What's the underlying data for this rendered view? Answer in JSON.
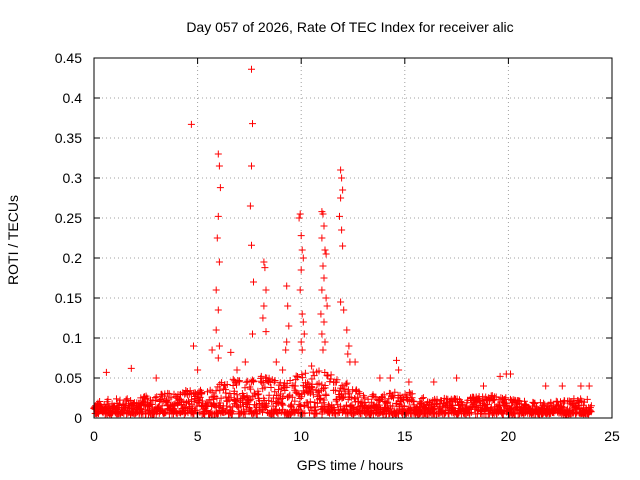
{
  "chart_data": {
    "type": "scatter",
    "title": "Day 057 of 2026, Rate Of TEC Index for receiver alic",
    "xlabel": "GPS time / hours",
    "ylabel": "ROTI / TECUs",
    "xlim": [
      0,
      25
    ],
    "ylim": [
      0,
      0.45
    ],
    "xticks": [
      0,
      5,
      10,
      15,
      20,
      25
    ],
    "xtick_labels": [
      "0",
      "5",
      "10",
      "15",
      "20",
      "25"
    ],
    "yticks": [
      0,
      0.05,
      0.1,
      0.15,
      0.2,
      0.25,
      0.3,
      0.35,
      0.4,
      0.45
    ],
    "ytick_labels": [
      "0",
      "0.05",
      "0.1",
      "0.15",
      "0.2",
      "0.25",
      "0.3",
      "0.35",
      "0.4",
      "0.45"
    ],
    "grid": true,
    "marker": "plus",
    "color": "#ff0000",
    "series": [
      {
        "name": "ROTI",
        "x": [
          4.7,
          5.9,
          6.0,
          6.05,
          6.1,
          6.0,
          5.95,
          6.05,
          6.0,
          5.9,
          6.05,
          6.0,
          7.6,
          7.65,
          7.6,
          7.55,
          7.6,
          7.7,
          7.65,
          8.2,
          8.25,
          8.3,
          8.2,
          8.15,
          8.3,
          9.3,
          9.35,
          9.4,
          9.3,
          9.25,
          9.9,
          9.95,
          10.0,
          10.05,
          10.1,
          10.0,
          9.95,
          10.05,
          10.1,
          10.15,
          10.0,
          10.05,
          11.0,
          11.05,
          11.1,
          11.0,
          11.15,
          11.2,
          11.05,
          11.1,
          11.0,
          11.2,
          11.25,
          10.95,
          11.1,
          11.0,
          11.15,
          11.05,
          11.9,
          11.95,
          12.0,
          11.9,
          11.85,
          11.95,
          12.0,
          11.9,
          12.05,
          12.2,
          12.3,
          12.25,
          12.35,
          14.6,
          14.7,
          0.6,
          1.8,
          3.0,
          4.8,
          5.0,
          5.7,
          6.6,
          6.9,
          7.3,
          8.8,
          9.1,
          10.5,
          12.6,
          13.8,
          14.3,
          15.2,
          16.4,
          17.5,
          18.8,
          19.6,
          19.9,
          20.1,
          21.8,
          22.6,
          23.5,
          23.9
        ],
        "y": [
          0.367,
          0.16,
          0.33,
          0.315,
          0.288,
          0.252,
          0.225,
          0.195,
          0.135,
          0.11,
          0.09,
          0.075,
          0.436,
          0.368,
          0.315,
          0.265,
          0.216,
          0.17,
          0.105,
          0.195,
          0.188,
          0.16,
          0.14,
          0.125,
          0.108,
          0.165,
          0.14,
          0.115,
          0.095,
          0.085,
          0.25,
          0.255,
          0.228,
          0.21,
          0.2,
          0.185,
          0.16,
          0.13,
          0.12,
          0.105,
          0.095,
          0.085,
          0.258,
          0.255,
          0.24,
          0.225,
          0.21,
          0.205,
          0.19,
          0.175,
          0.16,
          0.15,
          0.14,
          0.13,
          0.12,
          0.105,
          0.095,
          0.085,
          0.31,
          0.3,
          0.285,
          0.275,
          0.252,
          0.235,
          0.215,
          0.145,
          0.135,
          0.11,
          0.09,
          0.08,
          0.07,
          0.072,
          0.06,
          0.057,
          0.062,
          0.05,
          0.09,
          0.06,
          0.085,
          0.082,
          0.06,
          0.07,
          0.07,
          0.06,
          0.065,
          0.07,
          0.05,
          0.05,
          0.045,
          0.045,
          0.05,
          0.04,
          0.052,
          0.055,
          0.055,
          0.04,
          0.04,
          0.04,
          0.04
        ]
      }
    ],
    "dense_band": {
      "x_range": [
        0,
        24
      ],
      "y_range_typical": [
        0.005,
        0.03
      ],
      "description_values": [
        [
          0,
          0.02
        ],
        [
          1,
          0.025
        ],
        [
          2,
          0.025
        ],
        [
          3,
          0.03
        ],
        [
          4,
          0.035
        ],
        [
          5,
          0.035
        ],
        [
          6,
          0.045
        ],
        [
          7,
          0.05
        ],
        [
          8,
          0.055
        ],
        [
          9,
          0.05
        ],
        [
          10,
          0.055
        ],
        [
          11,
          0.06
        ],
        [
          12,
          0.05
        ],
        [
          13,
          0.03
        ],
        [
          14,
          0.03
        ],
        [
          15,
          0.035
        ],
        [
          16,
          0.025
        ],
        [
          17,
          0.025
        ],
        [
          18,
          0.025
        ],
        [
          19,
          0.03
        ],
        [
          20,
          0.025
        ],
        [
          21,
          0.02
        ],
        [
          22,
          0.02
        ],
        [
          23,
          0.025
        ],
        [
          24,
          0.025
        ]
      ]
    }
  }
}
